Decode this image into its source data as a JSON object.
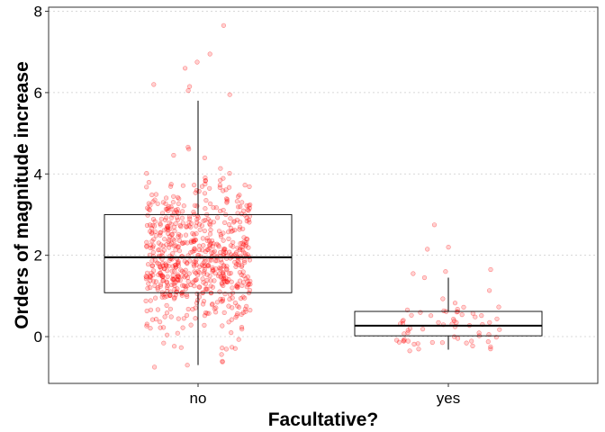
{
  "chart_data": {
    "type": "boxplot_jitter",
    "xlabel": "Facultative?",
    "ylabel": "Orders of magnitude increase",
    "categories": [
      "no",
      "yes"
    ],
    "ylim": [
      -1.15,
      8.1
    ],
    "y_ticks": [
      0,
      2,
      4,
      6,
      8
    ],
    "grid": "horizontal dotted at major ticks",
    "point_color": "#ff0000",
    "box_color": "#000000",
    "boxes": [
      {
        "category": "no",
        "whisker_low": -0.7,
        "q1": 1.08,
        "median": 1.95,
        "q3": 3.0,
        "whisker_high": 5.8
      },
      {
        "category": "yes",
        "whisker_low": -0.32,
        "q1": 0.02,
        "median": 0.27,
        "q3": 0.62,
        "whisker_high": 1.45
      }
    ],
    "point_groups": [
      {
        "category": "no",
        "n": 700,
        "approx_range": [
          -0.75,
          7.65
        ],
        "notable_points": [
          7.65,
          6.95,
          6.75,
          6.6,
          6.2,
          6.15,
          6.05,
          5.95,
          -0.7,
          -0.75
        ]
      },
      {
        "category": "yes",
        "n": 70,
        "approx_range": [
          -0.35,
          2.75
        ],
        "notable_points": [
          2.75,
          2.2,
          2.15,
          1.65,
          1.6,
          1.55,
          1.45,
          -0.3,
          -0.35
        ]
      }
    ]
  }
}
